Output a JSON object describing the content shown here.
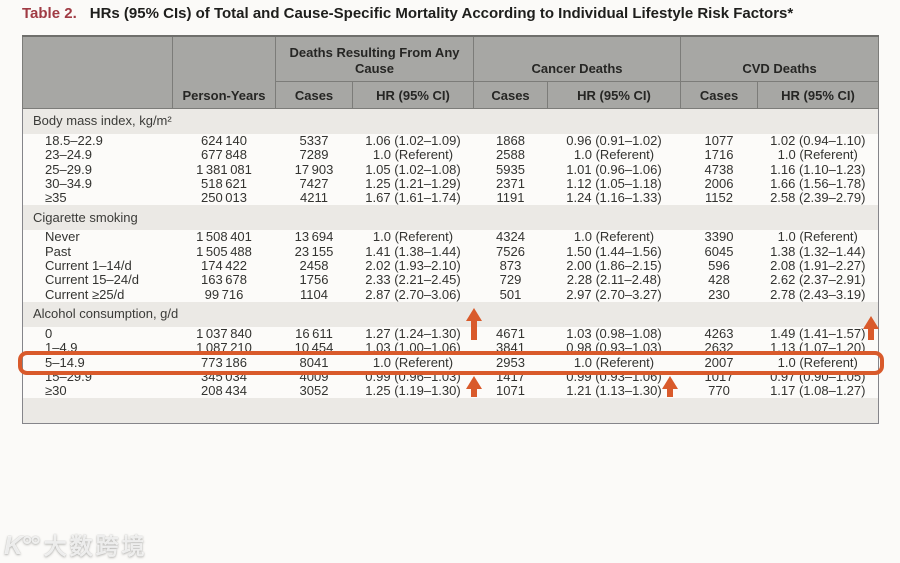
{
  "title": {
    "label": "Table 2.",
    "text": "HRs (95% CIs) of Total and Cause-Specific Mortality According to Individual Lifestyle Risk Factors*"
  },
  "table": {
    "header": {
      "person_years": "Person-Years",
      "cases": "Cases",
      "hr": "HR (95% CI)",
      "groups": [
        {
          "label": "Deaths Resulting From Any Cause"
        },
        {
          "label": "Cancer Deaths"
        },
        {
          "label": "CVD Deaths"
        }
      ]
    },
    "sections": [
      {
        "label": "Body mass index, kg/m²",
        "rows": [
          {
            "label": "18.5–22.9",
            "person_years": "624 140",
            "any_cases": "5337",
            "any_hr": "1.06 (1.02–1.09)",
            "cancer_cases": "1868",
            "cancer_hr": "0.96 (0.91–1.02)",
            "cvd_cases": "1077",
            "cvd_hr": "1.02 (0.94–1.10)"
          },
          {
            "label": "23–24.9",
            "person_years": "677 848",
            "any_cases": "7289",
            "any_hr": "1.0 (Referent)",
            "cancer_cases": "2588",
            "cancer_hr": "1.0 (Referent)",
            "cvd_cases": "1716",
            "cvd_hr": "1.0 (Referent)"
          },
          {
            "label": "25–29.9",
            "person_years": "1 381 081",
            "any_cases": "17 903",
            "any_hr": "1.05 (1.02–1.08)",
            "cancer_cases": "5935",
            "cancer_hr": "1.01 (0.96–1.06)",
            "cvd_cases": "4738",
            "cvd_hr": "1.16 (1.10–1.23)"
          },
          {
            "label": "30–34.9",
            "person_years": "518 621",
            "any_cases": "7427",
            "any_hr": "1.25 (1.21–1.29)",
            "cancer_cases": "2371",
            "cancer_hr": "1.12 (1.05–1.18)",
            "cvd_cases": "2006",
            "cvd_hr": "1.66 (1.56–1.78)"
          },
          {
            "label": "≥35",
            "person_years": "250 013",
            "any_cases": "4211",
            "any_hr": "1.67 (1.61–1.74)",
            "cancer_cases": "1191",
            "cancer_hr": "1.24 (1.16–1.33)",
            "cvd_cases": "1152",
            "cvd_hr": "2.58 (2.39–2.79)"
          }
        ]
      },
      {
        "label": "Cigarette smoking",
        "rows": [
          {
            "label": "Never",
            "person_years": "1 508 401",
            "any_cases": "13 694",
            "any_hr": "1.0 (Referent)",
            "cancer_cases": "4324",
            "cancer_hr": "1.0 (Referent)",
            "cvd_cases": "3390",
            "cvd_hr": "1.0 (Referent)"
          },
          {
            "label": "Past",
            "person_years": "1 505 488",
            "any_cases": "23 155",
            "any_hr": "1.41 (1.38–1.44)",
            "cancer_cases": "7526",
            "cancer_hr": "1.50 (1.44–1.56)",
            "cvd_cases": "6045",
            "cvd_hr": "1.38 (1.32–1.44)"
          },
          {
            "label": "Current 1–14/d",
            "person_years": "174 422",
            "any_cases": "2458",
            "any_hr": "2.02 (1.93–2.10)",
            "cancer_cases": "873",
            "cancer_hr": "2.00 (1.86–2.15)",
            "cvd_cases": "596",
            "cvd_hr": "2.08 (1.91–2.27)"
          },
          {
            "label": "Current 15–24/d",
            "person_years": "163 678",
            "any_cases": "1756",
            "any_hr": "2.33 (2.21–2.45)",
            "cancer_cases": "729",
            "cancer_hr": "2.28 (2.11–2.48)",
            "cvd_cases": "428",
            "cvd_hr": "2.62 (2.37–2.91)"
          },
          {
            "label": "Current ≥25/d",
            "person_years": "99 716",
            "any_cases": "1104",
            "any_hr": "2.87 (2.70–3.06)",
            "cancer_cases": "501",
            "cancer_hr": "2.97 (2.70–3.27)",
            "cvd_cases": "230",
            "cvd_hr": "2.78 (2.43–3.19)"
          }
        ]
      },
      {
        "label": "Alcohol consumption, g/d",
        "rows": [
          {
            "label": "0",
            "person_years": "1 037 840",
            "any_cases": "16 611",
            "any_hr": "1.27 (1.24–1.30)",
            "cancer_cases": "4671",
            "cancer_hr": "1.03 (0.98–1.08)",
            "cvd_cases": "4263",
            "cvd_hr": "1.49 (1.41–1.57)"
          },
          {
            "label": "1–4.9",
            "person_years": "1 087 210",
            "any_cases": "10 454",
            "any_hr": "1.03 (1.00–1.06)",
            "cancer_cases": "3841",
            "cancer_hr": "0.98 (0.93–1.03)",
            "cvd_cases": "2632",
            "cvd_hr": "1.13 (1.07–1.20)"
          },
          {
            "label": "5–14.9",
            "person_years": "773 186",
            "any_cases": "8041",
            "any_hr": "1.0 (Referent)",
            "cancer_cases": "2953",
            "cancer_hr": "1.0 (Referent)",
            "cvd_cases": "2007",
            "cvd_hr": "1.0 (Referent)"
          },
          {
            "label": "15–29.9",
            "person_years": "345 034",
            "any_cases": "4009",
            "any_hr": "0.99 (0.96–1.03)",
            "cancer_cases": "1417",
            "cancer_hr": "0.99 (0.93–1.06)",
            "cvd_cases": "1017",
            "cvd_hr": "0.97 (0.90–1.05)"
          },
          {
            "label": "≥30",
            "person_years": "208 434",
            "any_cases": "3052",
            "any_hr": "1.25 (1.19–1.30)",
            "cancer_cases": "1071",
            "cancer_hr": "1.21 (1.13–1.30)",
            "cvd_cases": "770",
            "cvd_hr": "1.17 (1.08–1.27)"
          }
        ]
      }
    ]
  },
  "annotations": {
    "accent_color": "#d95a2b",
    "highlight": {
      "section_index": 2,
      "row_index": 2,
      "note": "row outlined with rounded orange box"
    },
    "arrows": [
      {
        "section_index": 2,
        "row_index": 0,
        "anchor": "cancer-cases-left"
      },
      {
        "section_index": 2,
        "row_index": 0,
        "anchor": "table-right"
      },
      {
        "section_index": 2,
        "row_index": 4,
        "anchor": "cancer-cases-left"
      },
      {
        "section_index": 2,
        "row_index": 4,
        "anchor": "cancer-hr-right"
      }
    ]
  },
  "watermark": {
    "logo": "K°°",
    "text": "大数跨境"
  }
}
